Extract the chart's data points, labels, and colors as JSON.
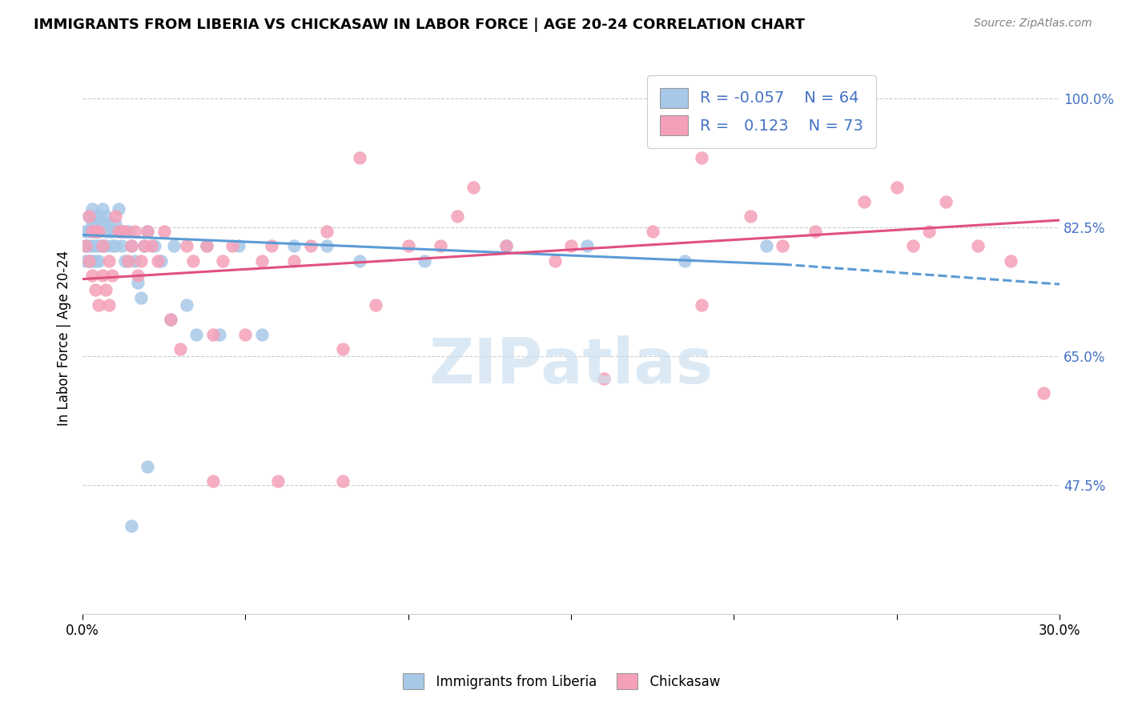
{
  "title": "IMMIGRANTS FROM LIBERIA VS CHICKASAW IN LABOR FORCE | AGE 20-24 CORRELATION CHART",
  "source": "Source: ZipAtlas.com",
  "ylabel": "In Labor Force | Age 20-24",
  "xlim": [
    0.0,
    0.3
  ],
  "ylim": [
    0.3,
    1.05
  ],
  "ytick_vals": [
    0.475,
    0.65,
    0.825,
    1.0
  ],
  "ytick_labels": [
    "47.5%",
    "65.0%",
    "82.5%",
    "100.0%"
  ],
  "xtick_vals": [
    0.0,
    0.05,
    0.1,
    0.15,
    0.2,
    0.25,
    0.3
  ],
  "xtick_labels": [
    "0.0%",
    "",
    "",
    "",
    "",
    "",
    "30.0%"
  ],
  "r_liberia": -0.057,
  "n_liberia": 64,
  "r_chickasaw": 0.123,
  "n_chickasaw": 73,
  "color_liberia": "#a8c8e8",
  "color_chickasaw": "#f4a0b8",
  "color_line_liberia": "#5b9bd5",
  "color_line_chickasaw": "#e05080",
  "watermark_color": "#cce0f0",
  "liberia_x": [
    0.001,
    0.001,
    0.001,
    0.002,
    0.002,
    0.002,
    0.002,
    0.003,
    0.003,
    0.003,
    0.003,
    0.003,
    0.004,
    0.004,
    0.004,
    0.004,
    0.004,
    0.005,
    0.005,
    0.005,
    0.005,
    0.006,
    0.006,
    0.006,
    0.007,
    0.007,
    0.007,
    0.008,
    0.008,
    0.009,
    0.009,
    0.01,
    0.01,
    0.011,
    0.011,
    0.012,
    0.013,
    0.014,
    0.015,
    0.016,
    0.017,
    0.018,
    0.019,
    0.02,
    0.022,
    0.024,
    0.027,
    0.028,
    0.032,
    0.035,
    0.038,
    0.042,
    0.048,
    0.055,
    0.065,
    0.075,
    0.085,
    0.105,
    0.13,
    0.155,
    0.185,
    0.21,
    0.015,
    0.02
  ],
  "liberia_y": [
    0.82,
    0.8,
    0.78,
    0.84,
    0.82,
    0.8,
    0.78,
    0.85,
    0.83,
    0.82,
    0.8,
    0.78,
    0.84,
    0.83,
    0.82,
    0.8,
    0.78,
    0.84,
    0.82,
    0.8,
    0.78,
    0.85,
    0.83,
    0.8,
    0.84,
    0.82,
    0.8,
    0.83,
    0.82,
    0.82,
    0.8,
    0.83,
    0.8,
    0.85,
    0.82,
    0.8,
    0.78,
    0.82,
    0.8,
    0.78,
    0.75,
    0.73,
    0.8,
    0.82,
    0.8,
    0.78,
    0.7,
    0.8,
    0.72,
    0.68,
    0.8,
    0.68,
    0.8,
    0.68,
    0.8,
    0.8,
    0.78,
    0.78,
    0.8,
    0.8,
    0.78,
    0.8,
    0.42,
    0.5
  ],
  "chickasaw_x": [
    0.001,
    0.002,
    0.002,
    0.003,
    0.003,
    0.004,
    0.004,
    0.005,
    0.005,
    0.006,
    0.006,
    0.007,
    0.008,
    0.008,
    0.009,
    0.01,
    0.011,
    0.012,
    0.013,
    0.014,
    0.015,
    0.016,
    0.017,
    0.018,
    0.019,
    0.02,
    0.021,
    0.023,
    0.025,
    0.027,
    0.03,
    0.032,
    0.034,
    0.038,
    0.04,
    0.043,
    0.046,
    0.05,
    0.055,
    0.058,
    0.065,
    0.07,
    0.075,
    0.08,
    0.09,
    0.1,
    0.11,
    0.115,
    0.13,
    0.145,
    0.16,
    0.175,
    0.19,
    0.205,
    0.215,
    0.225,
    0.24,
    0.25,
    0.255,
    0.26,
    0.265,
    0.275,
    0.285,
    0.295,
    0.19,
    0.21,
    0.23,
    0.085,
    0.12,
    0.15,
    0.04,
    0.06,
    0.08
  ],
  "chickasaw_y": [
    0.8,
    0.84,
    0.78,
    0.82,
    0.76,
    0.82,
    0.74,
    0.82,
    0.72,
    0.8,
    0.76,
    0.74,
    0.78,
    0.72,
    0.76,
    0.84,
    0.82,
    0.82,
    0.82,
    0.78,
    0.8,
    0.82,
    0.76,
    0.78,
    0.8,
    0.82,
    0.8,
    0.78,
    0.82,
    0.7,
    0.66,
    0.8,
    0.78,
    0.8,
    0.68,
    0.78,
    0.8,
    0.68,
    0.78,
    0.8,
    0.78,
    0.8,
    0.82,
    0.66,
    0.72,
    0.8,
    0.8,
    0.84,
    0.8,
    0.78,
    0.62,
    0.82,
    0.72,
    0.84,
    0.8,
    0.82,
    0.86,
    0.88,
    0.8,
    0.82,
    0.86,
    0.8,
    0.78,
    0.6,
    0.92,
    0.96,
    0.98,
    0.92,
    0.88,
    0.8,
    0.48,
    0.48,
    0.48
  ],
  "line_lib_x0": 0.0,
  "line_lib_x1": 0.215,
  "line_lib_y0": 0.815,
  "line_lib_y1": 0.775,
  "line_lib_dash_x0": 0.215,
  "line_lib_dash_x1": 0.3,
  "line_lib_dash_y0": 0.775,
  "line_lib_dash_y1": 0.748,
  "line_chick_x0": 0.0,
  "line_chick_x1": 0.3,
  "line_chick_y0": 0.755,
  "line_chick_y1": 0.835
}
